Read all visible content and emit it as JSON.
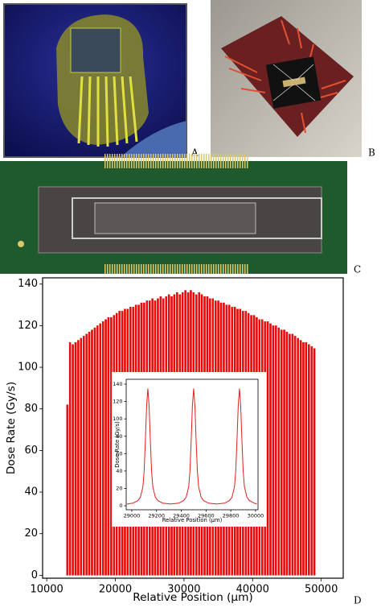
{
  "panel_labels": [
    "A",
    "B",
    "C",
    "D"
  ],
  "chart_data": [
    {
      "type": "bar",
      "y_label": "Dose Rate (Gy/s)",
      "x_label": "Relative Position (μm)",
      "color": "#ff0000",
      "x": [
        13000,
        13400,
        13800,
        14200,
        14600,
        15000,
        15400,
        15800,
        16200,
        16600,
        17000,
        17400,
        17800,
        18200,
        18600,
        19000,
        19400,
        19800,
        20200,
        20600,
        21000,
        21400,
        21800,
        22200,
        22600,
        23000,
        23400,
        23800,
        24200,
        24600,
        25000,
        25400,
        25800,
        26200,
        26600,
        27000,
        27400,
        27800,
        28200,
        28600,
        29000,
        29400,
        29800,
        30200,
        30600,
        31000,
        31400,
        31800,
        32200,
        32600,
        33000,
        33400,
        33800,
        34200,
        34600,
        35000,
        35400,
        35800,
        36200,
        36600,
        37000,
        37400,
        37800,
        38200,
        38600,
        39000,
        39400,
        39800,
        40200,
        40600,
        41000,
        41400,
        41800,
        42200,
        42600,
        43000,
        43400,
        43800,
        44200,
        44600,
        45000,
        45400,
        45800,
        46200,
        46600,
        47000,
        47400,
        47800,
        48200,
        48600,
        49000
      ],
      "values": [
        82,
        112,
        111,
        112,
        113,
        114,
        115,
        116,
        117,
        118,
        119,
        120,
        121,
        122,
        123,
        124,
        124,
        125,
        126,
        127,
        127,
        128,
        128,
        129,
        129,
        130,
        130,
        131,
        131,
        132,
        132,
        133,
        132,
        133,
        134,
        133,
        134,
        135,
        134,
        135,
        136,
        135,
        136,
        137,
        136,
        137,
        136,
        135,
        136,
        135,
        134,
        134,
        133,
        133,
        132,
        132,
        131,
        131,
        130,
        130,
        129,
        129,
        128,
        128,
        127,
        127,
        126,
        125,
        125,
        124,
        123,
        123,
        122,
        122,
        121,
        120,
        120,
        119,
        118,
        118,
        117,
        116,
        116,
        115,
        114,
        113,
        112,
        112,
        111,
        110,
        109
      ],
      "xlim": [
        9400,
        53200
      ],
      "ylim": [
        -1.4,
        143
      ],
      "xticks": [
        10000,
        20000,
        30000,
        40000,
        50000
      ],
      "yticks": [
        0,
        20,
        40,
        60,
        80,
        100,
        120,
        140
      ]
    },
    {
      "type": "line",
      "y_label": "Dose Rate (Gy/s)",
      "x_label": "Relative Position (μm)",
      "color": "#e02020",
      "x": [
        28960,
        29010,
        29050,
        29070,
        29090,
        29100,
        29110,
        29120,
        29130,
        29140,
        29150,
        29160,
        29170,
        29190,
        29210,
        29250,
        29315,
        29380,
        29420,
        29440,
        29460,
        29470,
        29480,
        29490,
        29500,
        29510,
        29520,
        29530,
        29540,
        29560,
        29580,
        29620,
        29685,
        29750,
        29790,
        29810,
        29830,
        29840,
        29850,
        29860,
        29870,
        29880,
        29890,
        29900,
        29910,
        29930,
        29950,
        29990,
        30010
      ],
      "values": [
        2,
        3,
        6,
        10,
        22,
        40,
        75,
        115,
        135,
        115,
        75,
        40,
        22,
        10,
        6,
        3,
        2,
        3,
        6,
        10,
        22,
        40,
        75,
        115,
        135,
        115,
        75,
        40,
        22,
        10,
        6,
        3,
        2,
        3,
        6,
        10,
        22,
        40,
        75,
        115,
        135,
        115,
        75,
        40,
        22,
        10,
        6,
        3,
        2
      ],
      "xlim": [
        28955,
        30020
      ],
      "ylim": [
        -4.6,
        145.6
      ],
      "xticks": [
        29000,
        29200,
        29400,
        29600,
        29800,
        30000
      ],
      "yticks": [
        0,
        20,
        40,
        60,
        80,
        100,
        120,
        140
      ]
    }
  ]
}
